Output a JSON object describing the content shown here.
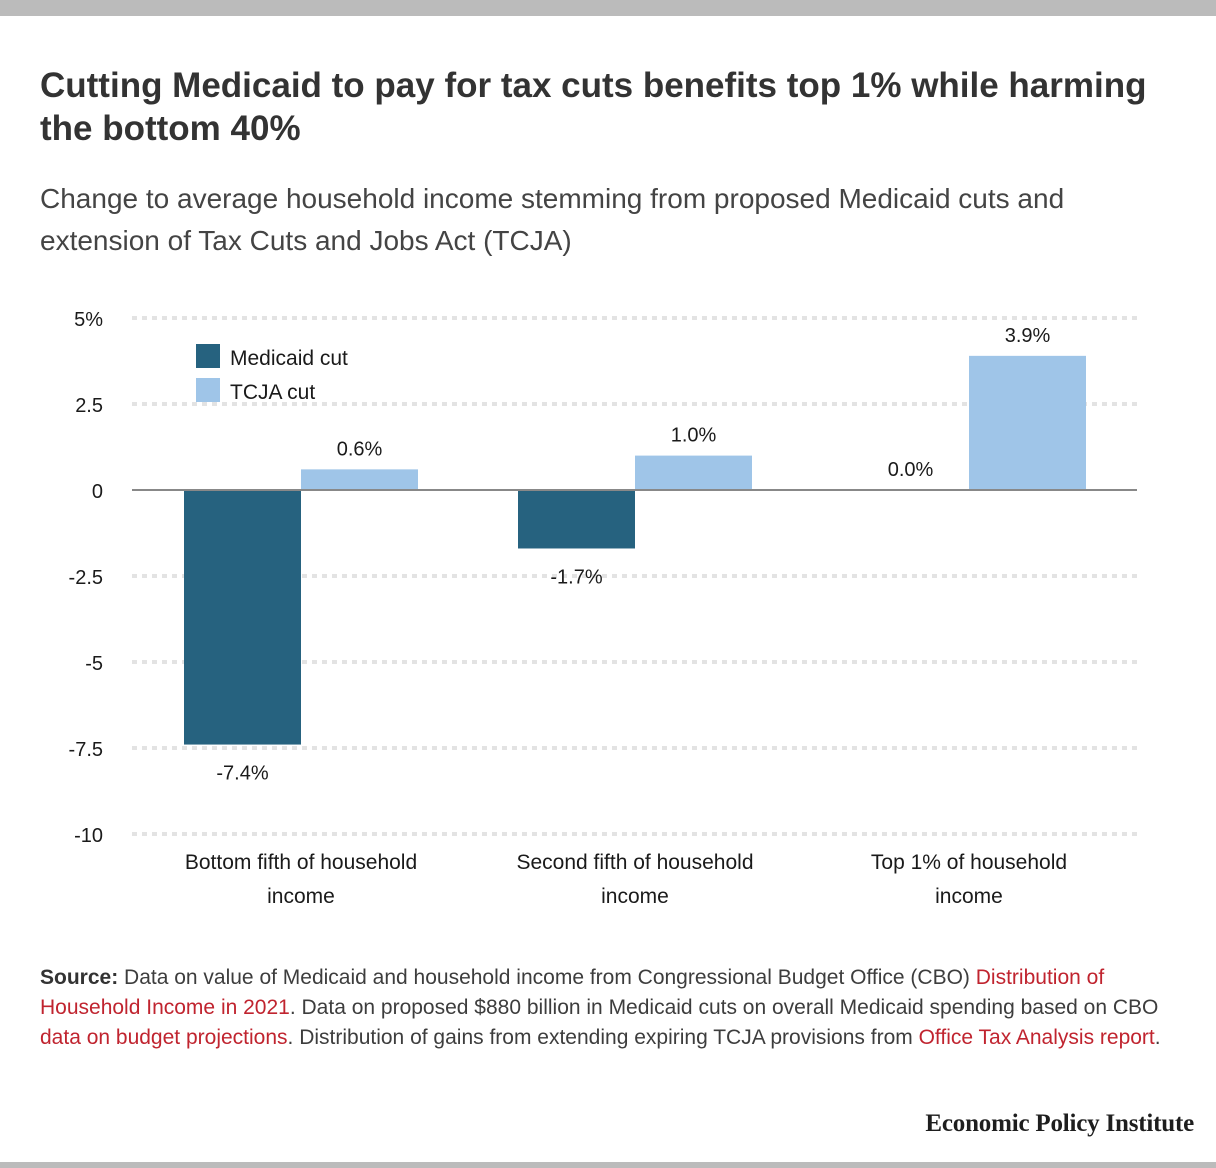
{
  "title": "Cutting Medicaid to pay for tax cuts benefits top 1% while harming the bottom 40%",
  "subtitle": "Change to average household income stemming from proposed Medicaid cuts and extension of Tax Cuts and Jobs Act (TCJA)",
  "chart_data": {
    "type": "bar",
    "title": "Cutting Medicaid to pay for tax cuts benefits top 1% while harming the bottom 40%",
    "subtitle": "Change to average household income stemming from proposed Medicaid cuts and extension of Tax Cuts and Jobs Act (TCJA)",
    "xlabel": "",
    "ylabel": "",
    "categories": [
      [
        "Bottom fifth of household",
        "income"
      ],
      [
        "Second fifth of household",
        "income"
      ],
      [
        "Top 1% of household",
        "income"
      ]
    ],
    "series": [
      {
        "name": "Medicaid cut",
        "color": "#26627f",
        "values": [
          -7.4,
          -1.7,
          0.0
        ],
        "labels": [
          "-7.4%",
          "-1.7%",
          "0.0%"
        ]
      },
      {
        "name": "TCJA cut",
        "color": "#9fc5e8",
        "values": [
          0.6,
          1.0,
          3.9
        ],
        "labels": [
          "0.6%",
          "1.0%",
          "3.9%"
        ]
      }
    ],
    "yticks": [
      5,
      2.5,
      0,
      -2.5,
      -5,
      -7.5,
      -10
    ],
    "ytick_labels": [
      "5%",
      "2.5",
      "0",
      "-2.5",
      "-5",
      "-7.5",
      "-10"
    ],
    "ylim": [
      -10,
      5
    ],
    "grid": true,
    "legend_position": "top-left"
  },
  "source": {
    "label": "Source:",
    "parts": [
      {
        "text": " Data on value of Medicaid and household income from Congressional Budget Office (CBO) ",
        "link": false
      },
      {
        "text": "Distribution of Household Income in 2021",
        "link": true
      },
      {
        "text": ". Data on proposed $880 billion in Medicaid cuts on overall Medicaid spending based on CBO ",
        "link": false
      },
      {
        "text": "data on budget projections",
        "link": true
      },
      {
        "text": ". Distribution of gains from extending expiring TCJA provisions from ",
        "link": false
      },
      {
        "text": "Office Tax Analysis report",
        "link": true
      },
      {
        "text": ".",
        "link": false
      }
    ]
  },
  "branding": "Economic Policy Institute"
}
